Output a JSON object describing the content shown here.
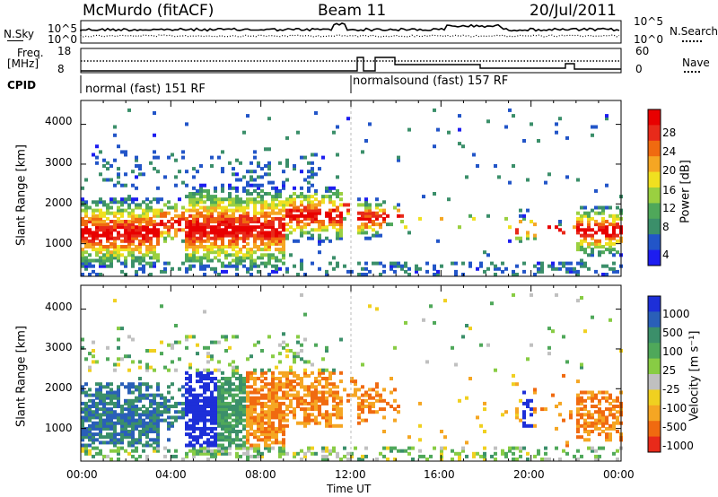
{
  "header": {
    "station": "McMurdo (fitACF)",
    "beam": "Beam 11",
    "date": "20/Jul/2011"
  },
  "top_panels": {
    "nsky_label": "N.Sky",
    "nsky_ticks": [
      "10^5",
      "10^0"
    ],
    "nsearch_label": "N.Search",
    "nsearch_ticks": [
      "10^5",
      "10^0"
    ],
    "freq_label_1": "Freq.",
    "freq_label_2": "[MHz]",
    "freq_ticks": [
      "18",
      "8"
    ],
    "nave_label": "Nave",
    "nave_ticks": [
      "60",
      "0"
    ],
    "cpid_label": "CPID",
    "cpid_segments": [
      {
        "label": "normal (fast) 151 RF",
        "start_hour": 0
      },
      {
        "label": "normalsound (fast) 157 RF",
        "start_hour": 12
      }
    ]
  },
  "chart_data": [
    {
      "type": "heatmap",
      "ylabel": "Slant Range [km]",
      "ylim": [
        180,
        4600
      ],
      "yticks": [
        "1000",
        "2000",
        "3000",
        "4000"
      ],
      "xlim_hours": [
        0,
        24
      ],
      "colorbar_label": "Power [dB]",
      "colorbar_ticks": [
        "4",
        "8",
        "12",
        "16",
        "20",
        "24",
        "28"
      ],
      "colorbar_colors": [
        "#1d1df0",
        "#2255c8",
        "#3b8f6a",
        "#4fa85a",
        "#9ad040",
        "#f0e020",
        "#f5a623",
        "#f06a10",
        "#e82a1a",
        "#e80000"
      ]
    },
    {
      "type": "heatmap",
      "ylabel": "Slant Range [km]",
      "ylim": [
        180,
        4600
      ],
      "yticks": [
        "1000",
        "2000",
        "3000",
        "4000"
      ],
      "xlim_hours": [
        0,
        24
      ],
      "colorbar_label": "Velocity [m s⁻¹]",
      "colorbar_ticks": [
        "1000",
        "500",
        "100",
        "25",
        "-25",
        "-100",
        "-500",
        "-1000"
      ],
      "colorbar_colors": [
        "#1d2fd8",
        "#2a5fb8",
        "#3b8f6a",
        "#4fa85a",
        "#88cc44",
        "#c0c0c0",
        "#f0d020",
        "#f5a623",
        "#f06a10",
        "#e82a1a"
      ]
    }
  ],
  "xaxis": {
    "ticks": [
      "00:00",
      "04:00",
      "08:00",
      "12:00",
      "16:00",
      "20:00",
      "00:00"
    ],
    "label": "Time UT"
  }
}
